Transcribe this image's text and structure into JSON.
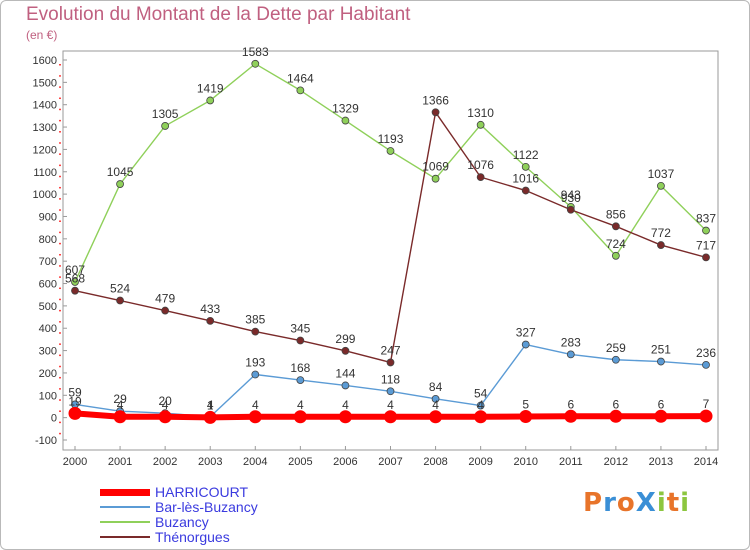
{
  "title": "Evolution du Montant de la Dette par Habitant",
  "subtitle": "(en €)",
  "logo": {
    "text": "ProXiti",
    "letter_colors": [
      "#e8742a",
      "#3a8fd6",
      "#e8742a",
      "#3a8fd6",
      "#8cc63f",
      "#e8742a",
      "#8cc63f"
    ]
  },
  "chart_data": {
    "type": "line",
    "title": "Evolution du Montant de la Dette par Habitant",
    "ylabel": "(en €)",
    "xlabel": "",
    "x": [
      "2000",
      "2001",
      "2002",
      "2003",
      "2004",
      "2005",
      "2006",
      "2007",
      "2008",
      "2009",
      "2010",
      "2011",
      "2012",
      "2013",
      "2014"
    ],
    "ylim": [
      -100,
      1600
    ],
    "yticks": [
      "-100",
      "0",
      "100",
      "200",
      "300",
      "400",
      "500",
      "600",
      "700",
      "800",
      "900",
      "1000",
      "1100",
      "1200",
      "1300",
      "1400",
      "1500",
      "1600"
    ],
    "grid": false,
    "legend_position": "bottom-left",
    "series": [
      {
        "name": "HARRICOURT",
        "color": "#ff0000",
        "values": [
          19,
          4,
          4,
          1,
          4,
          4,
          4,
          4,
          4,
          4,
          5,
          6,
          6,
          6,
          7
        ],
        "labels": [
          "19",
          "4",
          "4",
          "1",
          "4",
          "4",
          "4",
          "4",
          "4",
          "4",
          "5",
          "6",
          "6",
          "6",
          "7"
        ]
      },
      {
        "name": "Bar-lès-Buzancy",
        "color": "#5b9bd5",
        "values": [
          59,
          29,
          20,
          4,
          193,
          168,
          144,
          118,
          84,
          54,
          327,
          283,
          259,
          251,
          236
        ],
        "labels": [
          "59",
          "29",
          "20",
          "4",
          "193",
          "168",
          "144",
          "118",
          "84",
          "54",
          "327",
          "283",
          "259",
          "251",
          "236"
        ]
      },
      {
        "name": "Buzancy",
        "color": "#8fd05a",
        "values": [
          607,
          1045,
          1305,
          1419,
          1583,
          1464,
          1329,
          1193,
          1069,
          1310,
          1122,
          943,
          724,
          1037,
          837
        ],
        "labels": [
          "607",
          "1045",
          "1305",
          "1419",
          "1583",
          "1464",
          "1329",
          "1193",
          "1069",
          "1310",
          "1122",
          "943",
          "724",
          "1037",
          "837"
        ]
      },
      {
        "name": "Thénorgues",
        "color": "#7a2a2a",
        "values": [
          568,
          524,
          479,
          433,
          385,
          345,
          299,
          247,
          1366,
          1076,
          1016,
          930,
          856,
          772,
          717
        ],
        "labels": [
          "568",
          "524",
          "479",
          "433",
          "385",
          "345",
          "299",
          "247",
          "1366",
          "1076",
          "1016",
          "930",
          "856",
          "772",
          "717"
        ]
      }
    ]
  }
}
